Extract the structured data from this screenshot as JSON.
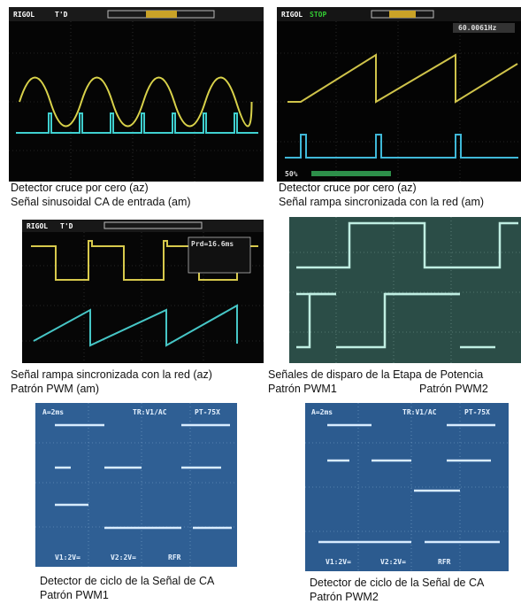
{
  "panels": [
    {
      "screen": [
        "RIGOL",
        "T'D"
      ],
      "caption": [
        "Detector cruce por cero (az)",
        "Señal sinusoidal CA de entrada (am)"
      ]
    },
    {
      "screen": [
        "RIGOL",
        "STOP",
        "60.0061Hz",
        "50%"
      ],
      "caption": [
        "Detector cruce por cero (az)",
        "Señal rampa sincronizada con la red (am)"
      ]
    },
    {
      "screen": [
        "RIGOL",
        "T'D",
        "Prd=16.6ms"
      ],
      "caption": [
        "Señal rampa sincronizada con la red (az)",
        "Patrón PWM (am)"
      ]
    },
    {
      "screen": [],
      "caption": [
        "Señales de disparo de la Etapa de Potencia",
        "Patrón PWM1",
        "Patrón PWM2"
      ]
    },
    {
      "screen": [
        "A=2ms",
        "TR:V1/AC",
        "PT-75X",
        "V1:2V=",
        "V2:2V=",
        "RFR"
      ],
      "caption": [
        "Detector de ciclo de la Señal de CA",
        "Patrón PWM1"
      ]
    },
    {
      "screen": [
        "A=2ms",
        "TR:V1/AC",
        "PT-75X",
        "V1:2V=",
        "V2:2V=",
        "RFR"
      ],
      "caption": [
        "Detector de ciclo de la Señal de CA",
        "Patrón PWM2"
      ]
    }
  ]
}
